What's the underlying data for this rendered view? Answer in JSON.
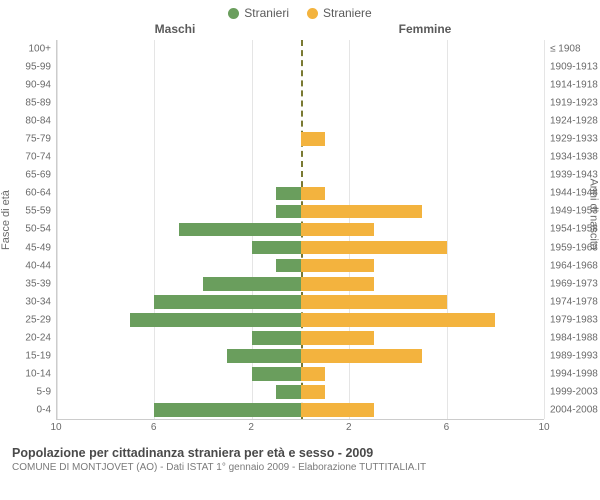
{
  "chart": {
    "type": "population-pyramid",
    "legend": [
      {
        "label": "Stranieri",
        "color": "#6a9e5d"
      },
      {
        "label": "Straniere",
        "color": "#f3b33e"
      }
    ],
    "header_left": "Maschi",
    "header_right": "Femmine",
    "ylabel_left": "Fasce di età",
    "ylabel_right": "Anni di nascita",
    "xmax": 10,
    "xticks": [
      10,
      6,
      2,
      2,
      6,
      10
    ],
    "xtick_positions_pct": [
      0,
      20,
      40,
      60,
      80,
      100
    ],
    "grid_positions_pct": [
      0,
      20,
      40,
      60,
      80,
      100
    ],
    "bar_color_left": "#6a9e5d",
    "bar_color_right": "#f3b33e",
    "center_line_color": "#7a7a33",
    "grid_color": "#e5e5e5",
    "background_color": "#ffffff",
    "rows": [
      {
        "age": "100+",
        "birth": "≤ 1908",
        "m": 0,
        "f": 0
      },
      {
        "age": "95-99",
        "birth": "1909-1913",
        "m": 0,
        "f": 0
      },
      {
        "age": "90-94",
        "birth": "1914-1918",
        "m": 0,
        "f": 0
      },
      {
        "age": "85-89",
        "birth": "1919-1923",
        "m": 0,
        "f": 0
      },
      {
        "age": "80-84",
        "birth": "1924-1928",
        "m": 0,
        "f": 0
      },
      {
        "age": "75-79",
        "birth": "1929-1933",
        "m": 0,
        "f": 1
      },
      {
        "age": "70-74",
        "birth": "1934-1938",
        "m": 0,
        "f": 0
      },
      {
        "age": "65-69",
        "birth": "1939-1943",
        "m": 0,
        "f": 0
      },
      {
        "age": "60-64",
        "birth": "1944-1948",
        "m": 1,
        "f": 1
      },
      {
        "age": "55-59",
        "birth": "1949-1953",
        "m": 1,
        "f": 5
      },
      {
        "age": "50-54",
        "birth": "1954-1958",
        "m": 5,
        "f": 3
      },
      {
        "age": "45-49",
        "birth": "1959-1963",
        "m": 2,
        "f": 6
      },
      {
        "age": "40-44",
        "birth": "1964-1968",
        "m": 1,
        "f": 3
      },
      {
        "age": "35-39",
        "birth": "1969-1973",
        "m": 4,
        "f": 3
      },
      {
        "age": "30-34",
        "birth": "1974-1978",
        "m": 6,
        "f": 6
      },
      {
        "age": "25-29",
        "birth": "1979-1983",
        "m": 7,
        "f": 8
      },
      {
        "age": "20-24",
        "birth": "1984-1988",
        "m": 2,
        "f": 3
      },
      {
        "age": "15-19",
        "birth": "1989-1993",
        "m": 3,
        "f": 5
      },
      {
        "age": "10-14",
        "birth": "1994-1998",
        "m": 2,
        "f": 1
      },
      {
        "age": "5-9",
        "birth": "1999-2003",
        "m": 1,
        "f": 1
      },
      {
        "age": "0-4",
        "birth": "2004-2008",
        "m": 6,
        "f": 3
      }
    ]
  },
  "footer": {
    "title": "Popolazione per cittadinanza straniera per età e sesso - 2009",
    "subtitle": "COMUNE DI MONTJOVET (AO) - Dati ISTAT 1° gennaio 2009 - Elaborazione TUTTITALIA.IT"
  }
}
